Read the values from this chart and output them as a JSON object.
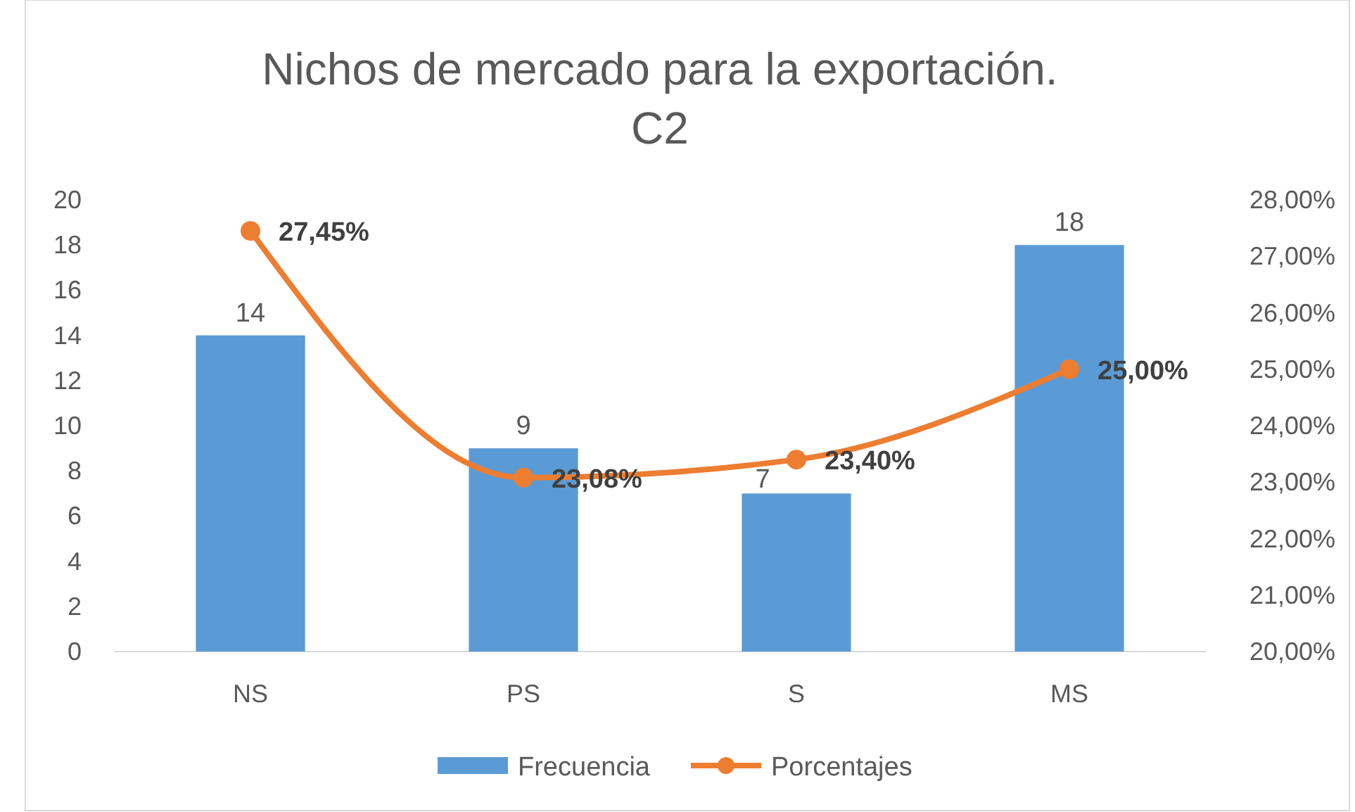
{
  "chart_data": {
    "type": "bar",
    "title": "Nichos de mercado para la exportación. C2",
    "categories": [
      "NS",
      "PS",
      "S",
      "MS"
    ],
    "series": [
      {
        "name": "Frecuencia",
        "color": "#5b9bd5",
        "values": [
          14,
          9,
          7,
          18
        ],
        "value_labels": [
          "14",
          "9",
          "7",
          "18"
        ]
      },
      {
        "name": "Porcentajes",
        "type": "line",
        "axis": "y2",
        "color": "#ed7d31",
        "values": [
          27.45,
          23.08,
          23.4,
          25.0
        ],
        "value_labels": [
          "27,45%",
          "23,08%",
          "23,40%",
          "25,00%"
        ],
        "marker": "circle"
      }
    ],
    "ylim": [
      0,
      20
    ],
    "yticks": [
      0,
      2,
      4,
      6,
      8,
      10,
      12,
      14,
      16,
      18,
      20
    ],
    "y2lim": [
      20,
      28
    ],
    "y2ticks": [
      {
        "value": 20,
        "label": "20,00%"
      },
      {
        "value": 21,
        "label": "21,00%"
      },
      {
        "value": 22,
        "label": "22,00%"
      },
      {
        "value": 23,
        "label": "23,00%"
      },
      {
        "value": 24,
        "label": "24,00%"
      },
      {
        "value": 25,
        "label": "25,00%"
      },
      {
        "value": 26,
        "label": "26,00%"
      },
      {
        "value": 27,
        "label": "27,00%"
      },
      {
        "value": 28,
        "label": "28,00%"
      }
    ],
    "grid": false,
    "legend": "bottom"
  }
}
